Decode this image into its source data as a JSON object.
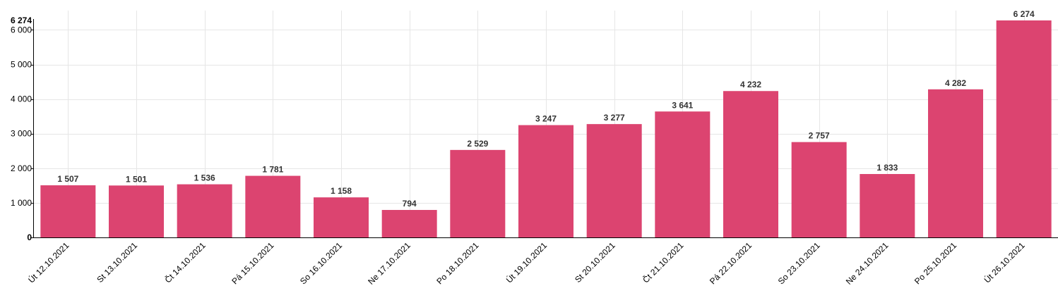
{
  "colors": {
    "bar": "#dc4470",
    "grid": "#e6e6e6",
    "axis": "#000000",
    "text": "#333333"
  },
  "chart_data": {
    "type": "bar",
    "categories": [
      "Út 12.10.2021",
      "St 13.10.2021",
      "Čt 14.10.2021",
      "Pá 15.10.2021",
      "So 16.10.2021",
      "Ne 17.10.2021",
      "Po 18.10.2021",
      "Út 19.10.2021",
      "St 20.10.2021",
      "Čt 21.10.2021",
      "Pá 22.10.2021",
      "So 23.10.2021",
      "Ne 24.10.2021",
      "Po 25.10.2021",
      "Út 26.10.2021"
    ],
    "values": [
      1507,
      1501,
      1536,
      1781,
      1158,
      794,
      2529,
      3247,
      3277,
      3641,
      4232,
      2757,
      1833,
      4282,
      6274
    ],
    "value_labels": [
      "1 507",
      "1 501",
      "1 536",
      "1 781",
      "1 158",
      "794",
      "2 529",
      "3 247",
      "3 277",
      "3 641",
      "4 232",
      "2 757",
      "1 833",
      "4 282",
      "6 274"
    ],
    "y_ticks": [
      0,
      1000,
      2000,
      3000,
      4000,
      5000,
      6000
    ],
    "y_tick_labels": [
      "0",
      "1 000",
      "2 000",
      "3 000",
      "4 000",
      "5 000",
      "6 000"
    ],
    "y_max_label": "6 274",
    "ylim": [
      0,
      6274
    ],
    "title": "",
    "xlabel": "",
    "ylabel": "",
    "grid": true,
    "legend": "none"
  }
}
